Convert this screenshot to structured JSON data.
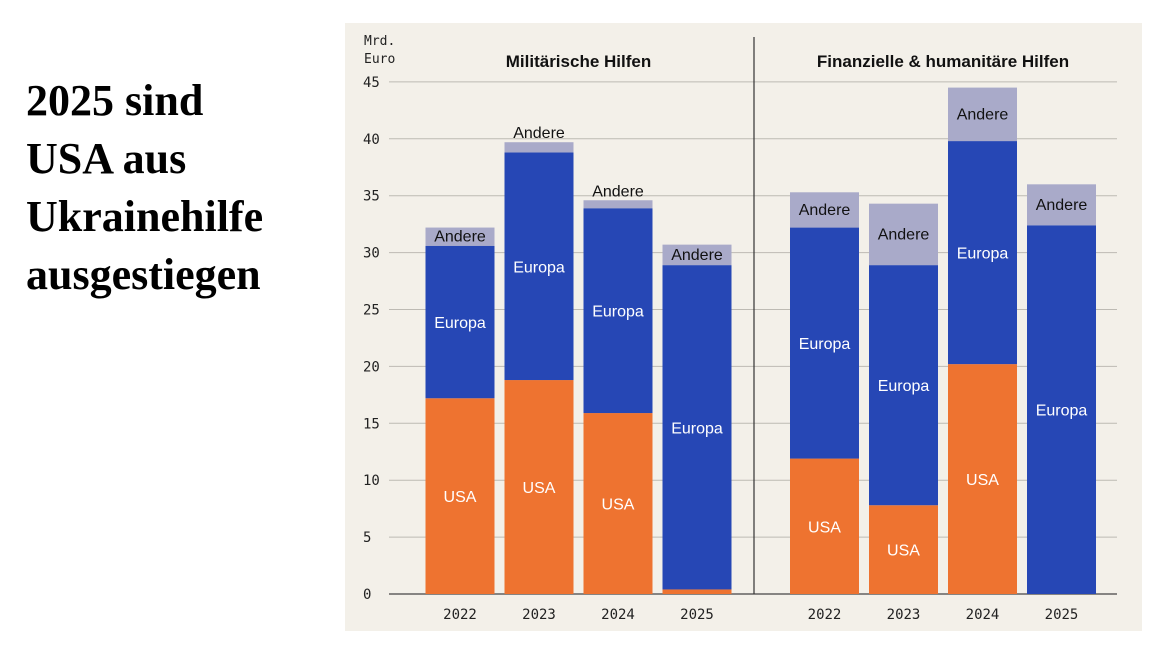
{
  "headline": {
    "lines": [
      "2025 sind",
      "USA aus",
      "Ukrainehilfe",
      "ausgestiegen"
    ]
  },
  "chart_data": {
    "type": "bar",
    "stacked": true,
    "y_unit_label": [
      "Mrd.",
      "Euro"
    ],
    "ylim": [
      0,
      45
    ],
    "yticks": [
      0,
      5,
      10,
      15,
      20,
      25,
      30,
      35,
      40,
      45
    ],
    "grid": true,
    "colors": {
      "USA": "#ee7330",
      "Europa": "#2647b5",
      "Andere": "#a9aac9",
      "background": "#f3f0e9"
    },
    "panels": [
      {
        "title": "Militärische Hilfen",
        "categories": [
          "2022",
          "2023",
          "2024",
          "2025"
        ],
        "series": [
          {
            "name": "USA",
            "values": [
              17.2,
              18.8,
              15.9,
              0.4
            ],
            "labels": [
              "USA",
              "USA",
              "USA",
              ""
            ]
          },
          {
            "name": "Europa",
            "values": [
              13.4,
              20.0,
              18.0,
              28.5
            ],
            "labels": [
              "Europa",
              "Europa",
              "Europa",
              "Europa"
            ]
          },
          {
            "name": "Andere",
            "values": [
              1.6,
              0.9,
              0.7,
              1.8
            ],
            "labels": [
              "Andere",
              "Andere",
              "Andere",
              "Andere"
            ]
          }
        ]
      },
      {
        "title": "Finanzielle & humanitäre Hilfen",
        "categories": [
          "2022",
          "2023",
          "2024",
          "2025"
        ],
        "series": [
          {
            "name": "USA",
            "values": [
              11.9,
              7.8,
              20.2,
              0
            ],
            "labels": [
              "USA",
              "USA",
              "USA",
              ""
            ]
          },
          {
            "name": "Europa",
            "values": [
              20.3,
              21.1,
              19.6,
              32.4
            ],
            "labels": [
              "Europa",
              "Europa",
              "Europa",
              "Europa"
            ]
          },
          {
            "name": "Andere",
            "values": [
              3.1,
              5.4,
              4.7,
              3.6
            ],
            "labels": [
              "Andere",
              "Andere",
              "Andere",
              "Andere"
            ]
          }
        ]
      }
    ]
  }
}
